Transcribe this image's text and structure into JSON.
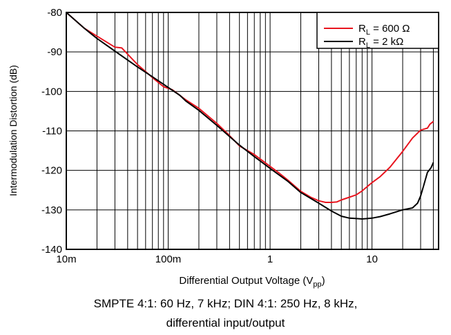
{
  "chart_data": {
    "type": "line",
    "x_scale": "log",
    "xlim": [
      0.01,
      45
    ],
    "ylim": [
      -140,
      -80
    ],
    "x_ticks": [
      0.01,
      0.1,
      1,
      10
    ],
    "x_tick_labels": [
      "10m",
      "100m",
      "1",
      "10"
    ],
    "y_ticks": [
      -140,
      -130,
      -120,
      -110,
      -100,
      -90,
      -80
    ],
    "y_tick_labels": [
      "-140",
      "-130",
      "-120",
      "-110",
      "-100",
      "-90",
      "-80"
    ],
    "xlabel": {
      "main": "Differential Output Voltage (V",
      "sub": "pp",
      "end": ")"
    },
    "ylabel": "Intermodulation Distortion (dB)",
    "grid": {
      "x_minor": true,
      "y_major": true
    },
    "legend_position": "top-right",
    "series": [
      {
        "name": {
          "main": "R",
          "sub": "L",
          "rest": " =  600 Ω"
        },
        "color": "#e8141e",
        "x": [
          0.01,
          0.015,
          0.02,
          0.03,
          0.035,
          0.05,
          0.07,
          0.09,
          0.11,
          0.15,
          0.2,
          0.3,
          0.4,
          0.5,
          0.7,
          1.0,
          1.2,
          1.5,
          2.0,
          2.5,
          3.0,
          3.5,
          4.0,
          4.5,
          5.0,
          6.0,
          7.0,
          8.0,
          10.0,
          12.0,
          15.0,
          20.0,
          25.0,
          30.0,
          35.0,
          37.0,
          40.0
        ],
        "y": [
          -80.0,
          -84.0,
          -86.0,
          -88.8,
          -89.0,
          -93.2,
          -96.5,
          -98.8,
          -99.6,
          -102.2,
          -104.3,
          -108.1,
          -111.2,
          -113.8,
          -116.0,
          -119.0,
          -120.5,
          -122.5,
          -125.3,
          -126.8,
          -127.7,
          -128.1,
          -128.1,
          -128.0,
          -127.5,
          -126.8,
          -126.2,
          -125.2,
          -123.1,
          -121.6,
          -119.2,
          -115.2,
          -111.8,
          -109.8,
          -109.3,
          -108.3,
          -107.6
        ]
      },
      {
        "name": {
          "main": "R",
          "sub": "L",
          "rest": " =  2 kΩ"
        },
        "color": "#000000",
        "x": [
          0.01,
          0.015,
          0.02,
          0.03,
          0.05,
          0.07,
          0.1,
          0.13,
          0.15,
          0.2,
          0.3,
          0.5,
          0.7,
          1.0,
          1.5,
          2.0,
          3.0,
          4.0,
          5.0,
          6.0,
          7.0,
          8.0,
          9.0,
          10.0,
          12.0,
          15.0,
          20.0,
          25.0,
          28.0,
          30.0,
          32.0,
          35.0,
          38.0,
          40.0
        ],
        "y": [
          -80.0,
          -84.0,
          -86.6,
          -89.8,
          -93.8,
          -96.3,
          -99.0,
          -101.0,
          -102.5,
          -104.8,
          -108.6,
          -113.6,
          -116.5,
          -119.5,
          -122.8,
          -125.6,
          -128.3,
          -130.3,
          -131.6,
          -132.1,
          -132.2,
          -132.3,
          -132.2,
          -132.1,
          -131.7,
          -131.0,
          -130.0,
          -129.5,
          -128.3,
          -126.5,
          -124.0,
          -120.5,
          -119.3,
          -118.0
        ]
      }
    ]
  },
  "caption": {
    "line1": "SMPTE 4:1: 60 Hz, 7 kHz; DIN 4:1: 250 Hz, 8 kHz,",
    "line2": "differential input/output"
  }
}
